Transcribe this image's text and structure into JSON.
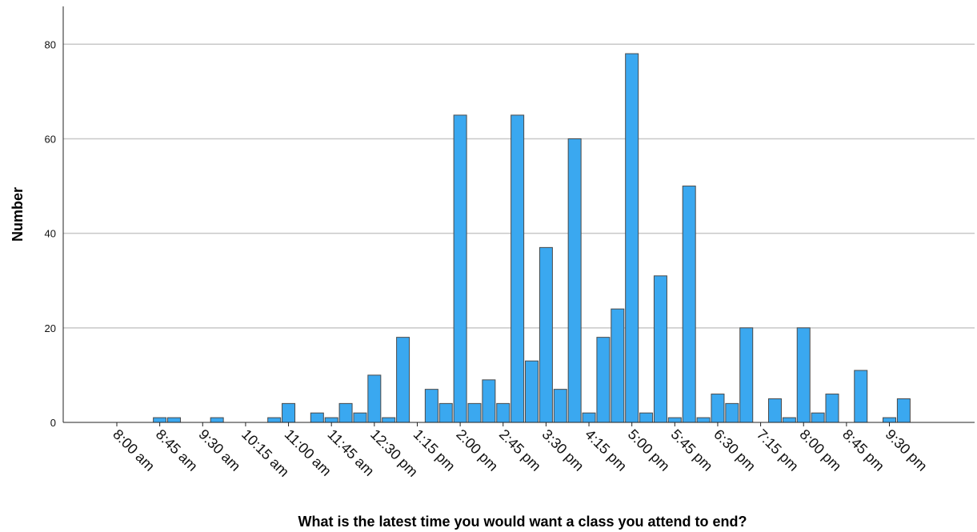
{
  "chart_data": {
    "type": "bar",
    "xlabel": "What is the latest time you would want a class you attend to end?",
    "ylabel": "Number",
    "ylim": [
      0,
      88
    ],
    "yticks": [
      0,
      20,
      40,
      60,
      80
    ],
    "grid": "horizontal",
    "bar_color": "#3aa8f0",
    "categories": [
      "8:00 am",
      "8:15 am",
      "8:30 am",
      "8:45 am",
      "9:00 am",
      "9:15 am",
      "9:30 am",
      "9:45 am",
      "10:00 am",
      "10:15 am",
      "10:30 am",
      "10:45 am",
      "11:00 am",
      "11:15 am",
      "11:30 am",
      "11:45 am",
      "12:00 pm",
      "12:15 pm",
      "12:30 pm",
      "12:45 pm",
      "1:00 pm",
      "1:15 pm",
      "1:30 pm",
      "1:45 pm",
      "2:00 pm",
      "2:15 pm",
      "2:30 pm",
      "2:45 pm",
      "3:00 pm",
      "3:15 pm",
      "3:30 pm",
      "3:45 pm",
      "4:00 pm",
      "4:15 pm",
      "4:30 pm",
      "4:45 pm",
      "5:00 pm",
      "5:15 pm",
      "5:30 pm",
      "5:45 pm",
      "6:00 pm",
      "6:15 pm",
      "6:30 pm",
      "6:45 pm",
      "7:00 pm",
      "7:15 pm",
      "7:30 pm",
      "7:45 pm",
      "8:00 pm",
      "8:15 pm",
      "8:30 pm",
      "8:45 pm",
      "9:00 pm",
      "9:15 pm",
      "9:30 pm",
      "9:45 pm"
    ],
    "values": [
      0,
      0,
      0,
      1,
      1,
      0,
      0,
      1,
      0,
      0,
      0,
      1,
      4,
      0,
      2,
      1,
      4,
      2,
      10,
      1,
      18,
      0,
      7,
      4,
      65,
      4,
      9,
      4,
      65,
      13,
      37,
      7,
      60,
      2,
      18,
      24,
      78,
      2,
      31,
      1,
      50,
      1,
      6,
      4,
      20,
      0,
      5,
      1,
      20,
      2,
      6,
      0,
      11,
      0,
      1,
      5
    ],
    "tick_labels": [
      "8:00 am",
      "8:45 am",
      "9:30 am",
      "10:15 am",
      "11:00 am",
      "11:45 am",
      "12:30 pm",
      "1:15 pm",
      "2:00 pm",
      "2:45 pm",
      "3:30 pm",
      "4:15 pm",
      "5:00 pm",
      "5:45 pm",
      "6:30 pm",
      "7:15 pm",
      "8:00 pm",
      "8:45 pm",
      "9:30 pm"
    ]
  }
}
